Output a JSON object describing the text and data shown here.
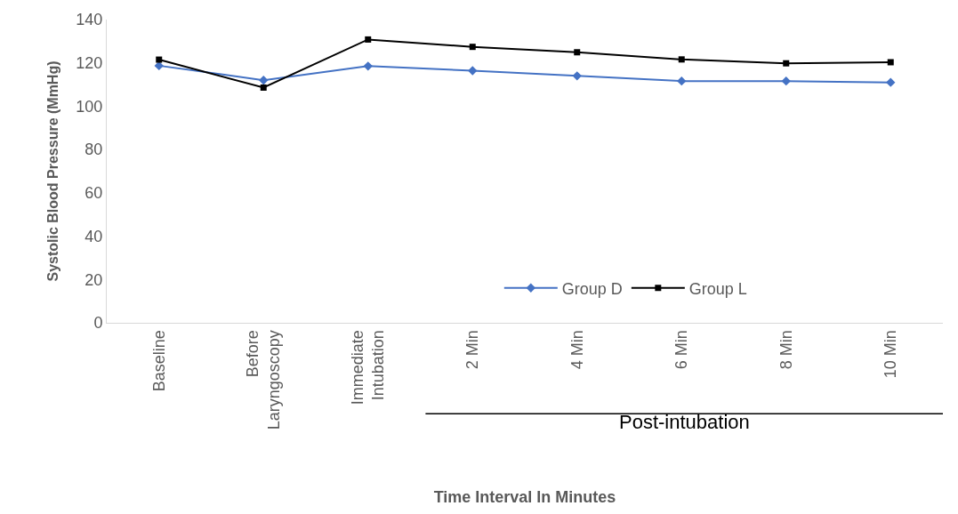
{
  "chart_data": {
    "type": "line",
    "xlabel": "Time Interval In Minutes",
    "ylabel": "Systolic Blood Pressure (MmHg)",
    "categories": [
      "Baseline",
      "Before Laryngoscopy",
      "Immediate Intubation",
      "2 Min",
      "4 Min",
      "6 Min",
      "8 Min",
      "10 Min"
    ],
    "series": [
      {
        "name": "Group D",
        "color": "#4472c4",
        "marker": "diamond",
        "values": [
          118.7,
          112.0,
          118.5,
          116.4,
          114.0,
          111.6,
          111.6,
          111.0
        ]
      },
      {
        "name": "Group L",
        "color": "#000000",
        "marker": "square",
        "values": [
          121.5,
          108.6,
          130.8,
          127.4,
          124.9,
          121.6,
          119.8,
          120.3
        ]
      }
    ],
    "ylim": [
      0,
      140
    ],
    "yticks": [
      0,
      20,
      40,
      60,
      80,
      100,
      120,
      140
    ],
    "grid": false,
    "legend": "bottom",
    "annotations": [
      "Post-intubation"
    ]
  }
}
